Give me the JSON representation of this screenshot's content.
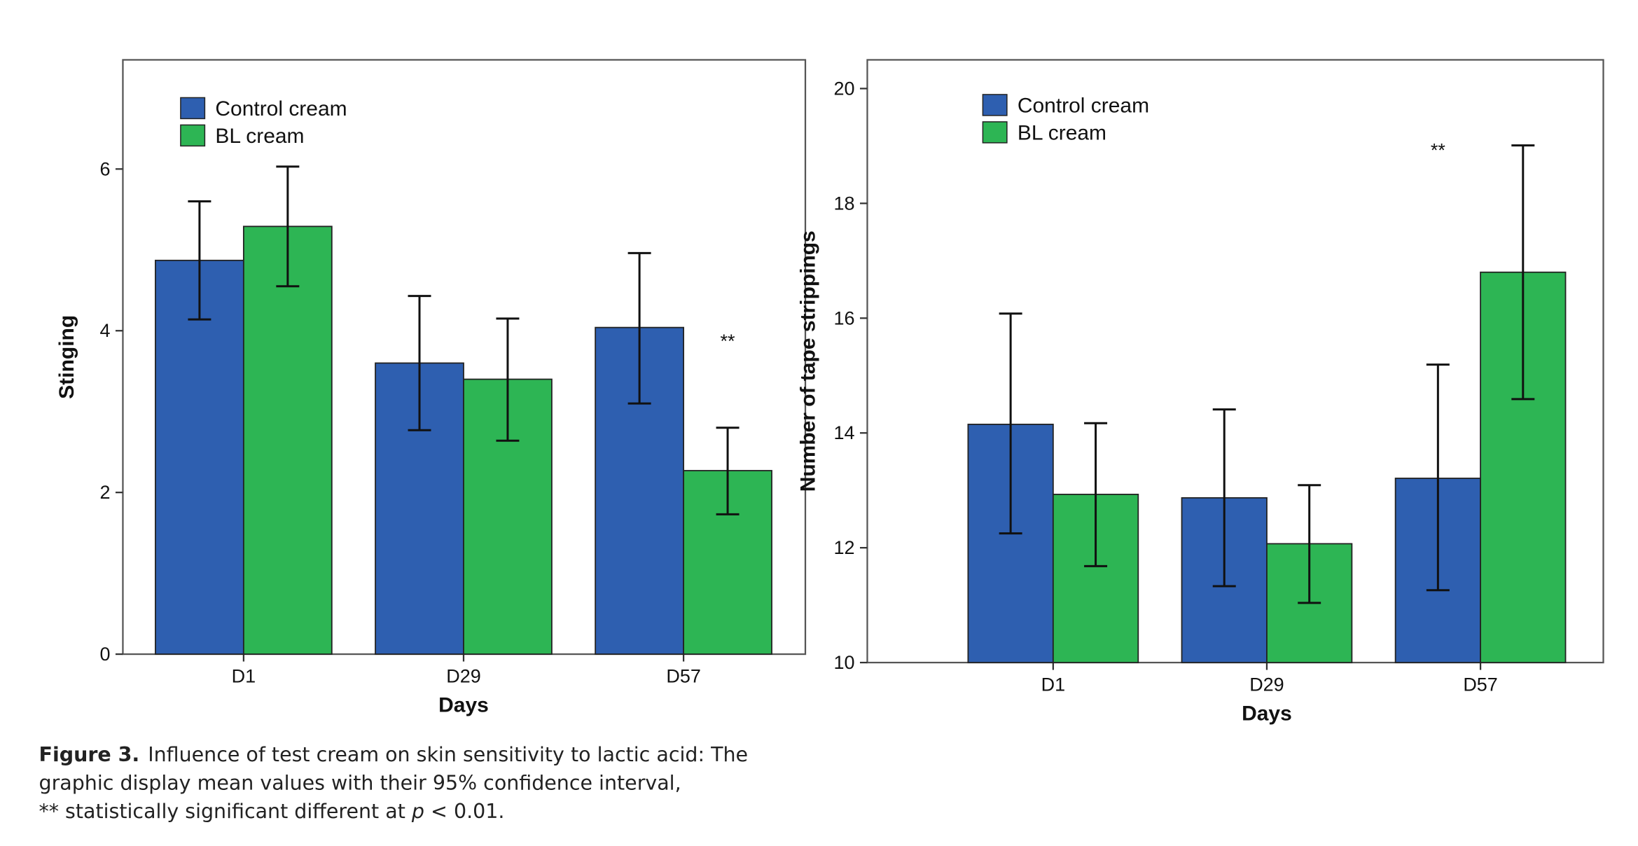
{
  "chart_data": [
    {
      "type": "bar",
      "ylabel": "Stinging",
      "xlabel": "Days",
      "categories": [
        "D1",
        "D29",
        "D57"
      ],
      "series": [
        {
          "name": "Control cream",
          "color": "#2e5fb0",
          "values": [
            4.87,
            3.6,
            4.04
          ],
          "ci_lower": [
            4.14,
            2.77,
            3.1
          ],
          "ci_upper": [
            5.6,
            4.43,
            4.96
          ]
        },
        {
          "name": "BL cream",
          "color": "#2db554",
          "values": [
            5.29,
            3.4,
            2.27
          ],
          "ci_lower": [
            4.55,
            2.64,
            1.73
          ],
          "ci_upper": [
            6.03,
            4.15,
            2.8
          ]
        }
      ],
      "ylim": [
        0,
        7.35
      ],
      "yticks": [
        0,
        2,
        4,
        6
      ],
      "legend": "top-left",
      "annotations": [
        {
          "text": "**",
          "category": "D57",
          "series": "BL cream",
          "y": 3.9
        }
      ]
    },
    {
      "type": "bar",
      "ylabel": "Number of tape strippings",
      "xlabel": "Days",
      "categories": [
        "D1",
        "D29",
        "D57"
      ],
      "series": [
        {
          "name": "Control cream",
          "color": "#2e5fb0",
          "values": [
            14.15,
            12.87,
            13.21
          ],
          "ci_lower": [
            12.25,
            11.33,
            11.26
          ],
          "ci_upper": [
            16.08,
            14.41,
            15.19
          ]
        },
        {
          "name": "BL cream",
          "color": "#2db554",
          "values": [
            12.93,
            12.07,
            16.8
          ],
          "ci_lower": [
            11.68,
            11.04,
            14.59
          ],
          "ci_upper": [
            14.17,
            13.09,
            19.01
          ]
        }
      ],
      "ylim": [
        10,
        20.5
      ],
      "yticks": [
        10,
        12,
        14,
        16,
        18,
        20
      ],
      "legend": "top-left",
      "annotations": [
        {
          "text": "**",
          "category": "D57",
          "series": "Control cream",
          "y": 18.96
        }
      ]
    }
  ],
  "caption": {
    "label": "Figure 3.",
    "line1": "Influence  of test cream on skin sensitivity to lactic acid: The",
    "line2": "graphic display mean values with their 95% confidence interval,",
    "line3_start": "** statistically significant different at ",
    "line3_var": "p",
    "line3_end": " < 0.01."
  }
}
